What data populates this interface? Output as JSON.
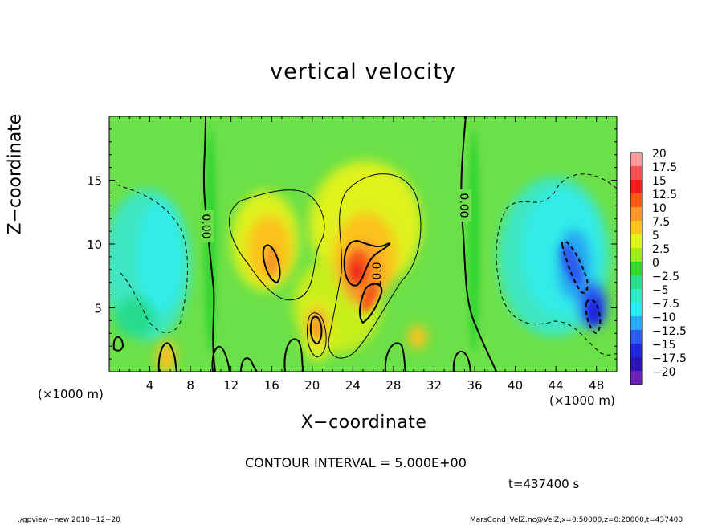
{
  "chart_data": {
    "type": "heatmap",
    "title": "vertical velocity",
    "xlabel": "X−coordinate",
    "ylabel": "Z−coordinate",
    "x_unit_label": "(×1000 m)",
    "xlim": [
      0,
      50
    ],
    "ylim": [
      0,
      20
    ],
    "x_ticks": [
      4,
      8,
      12,
      16,
      20,
      24,
      28,
      32,
      36,
      40,
      44,
      48
    ],
    "y_ticks": [
      5,
      10,
      15
    ],
    "colorbar": {
      "levels": [
        "20",
        "17.5",
        "15",
        "12.5",
        "10",
        "7.5",
        "5",
        "2.5",
        "0",
        "−2.5",
        "−5",
        "−7.5",
        "−10",
        "−12.5",
        "−15",
        "−17.5",
        "−20"
      ],
      "colors": [
        "#f99a9a",
        "#f25050",
        "#f01c1c",
        "#f55a14",
        "#f8962a",
        "#fbc21c",
        "#dff21a",
        "#9cec1c",
        "#35d630",
        "#28dc8c",
        "#30e8c4",
        "#28eaf2",
        "#28a8f2",
        "#2a5cf0",
        "#1e28d8",
        "#2a14b4",
        "#6c20b4"
      ]
    },
    "contour_labels": [
      "0.00",
      "0.00",
      "10.0"
    ],
    "contour_interval_text": "CONTOUR INTERVAL = 5.000E+00",
    "time_text": "t=437400 s"
  },
  "footer": {
    "left": "./gpview−new   2010−12−20",
    "right": "MarsCond_VelZ.nc@VelZ,x=0:50000,z=0:20000,t=437400"
  }
}
